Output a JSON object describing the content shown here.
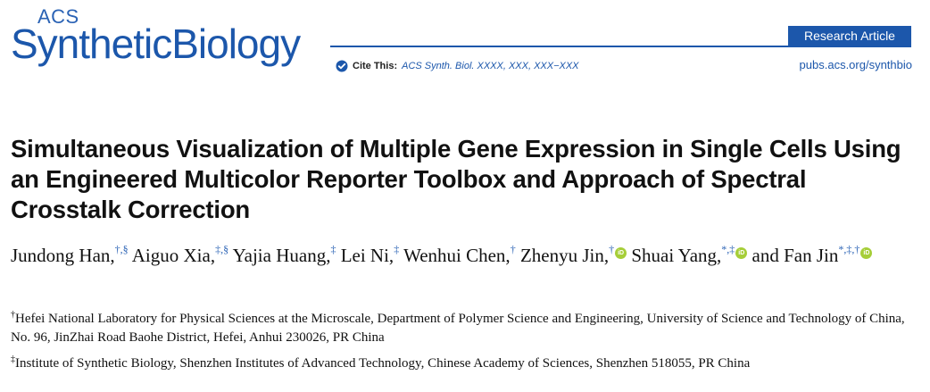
{
  "journal": {
    "logo_prefix": "ACS",
    "logo_word1": "Synthetic",
    "logo_word2": "Biology",
    "article_type": "Research Article",
    "cite_label": "Cite This:",
    "cite_text": "ACS Synth. Biol. XXXX, XXX, XXX−XXX",
    "url": "pubs.acs.org/synthbio",
    "brand_color": "#1c57ab",
    "orcid_color": "#a6ce39"
  },
  "title": "Simultaneous Visualization of Multiple Gene Expression in Single Cells Using an Engineered Multicolor Reporter Toolbox and Approach of Spectral Crosstalk Correction",
  "authors": [
    {
      "name": "Jundong Han,",
      "sup": "†,§",
      "orcid": false
    },
    {
      "name": "Aiguo Xia,",
      "sup": "‡,§",
      "orcid": false
    },
    {
      "name": "Yajia Huang,",
      "sup": "‡",
      "orcid": false
    },
    {
      "name": "Lei Ni,",
      "sup": "‡",
      "orcid": false
    },
    {
      "name": "Wenhui Chen,",
      "sup": "†",
      "orcid": false
    },
    {
      "name": "Zhenyu Jin,",
      "sup": "†",
      "orcid": true
    },
    {
      "name": "Shuai Yang,",
      "sup": "*,‡",
      "orcid": true
    },
    {
      "name": "and Fan Jin",
      "sup": "*,‡,†",
      "orcid": true
    }
  ],
  "affiliations": [
    {
      "mark": "†",
      "text": "Hefei National Laboratory for Physical Sciences at the Microscale, Department of Polymer Science and Engineering, University of Science and Technology of China, No. 96, JinZhai Road Baohe District, Hefei, Anhui 230026, PR China"
    },
    {
      "mark": "‡",
      "text": "Institute of Synthetic Biology, Shenzhen Institutes of Advanced Technology, Chinese Academy of Sciences, Shenzhen 518055, PR China"
    }
  ]
}
